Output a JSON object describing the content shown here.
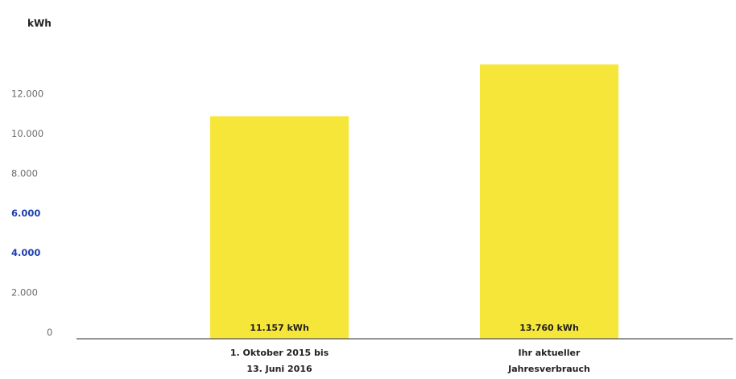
{
  "chart_data": {
    "type": "bar",
    "unit_label": "kWh",
    "y_ticks": [
      "0",
      "2.000",
      "4.000",
      "6.000",
      "8.000",
      "10.000",
      "12.000"
    ],
    "y_tick_values": [
      0,
      2000,
      4000,
      6000,
      8000,
      10000,
      12000
    ],
    "ylim": [
      0,
      14000
    ],
    "categories": [
      [
        "1. Oktober 2015 bis",
        "13. Juni 2016"
      ],
      [
        "Ihr aktueller",
        "Jahresverbrauch"
      ]
    ],
    "values": [
      11157,
      13760
    ],
    "data_labels": [
      "11.157 kWh",
      "13.760 kWh"
    ],
    "grid": false,
    "legend": "none",
    "colors": {
      "bar": "#f7e63a",
      "axis": "#555555",
      "tick_text": "#6b6b6b",
      "smudge": "#1e3fb0"
    }
  }
}
